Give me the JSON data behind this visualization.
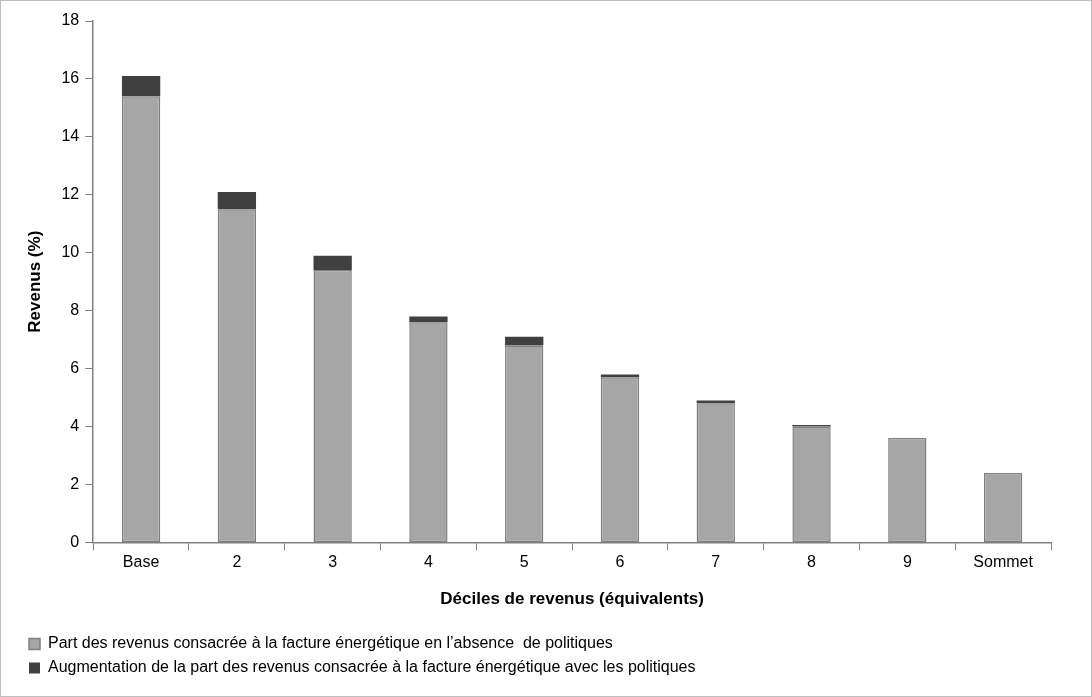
{
  "chart_data": {
    "type": "bar",
    "stacked": true,
    "xlabel": "Déciles de revenus (équivalents)",
    "ylabel": "Revenus (%)",
    "categories": [
      "Base",
      "2",
      "3",
      "4",
      "5",
      "6",
      "7",
      "8",
      "9",
      "Sommet"
    ],
    "series": [
      {
        "name": "Part des revenus consacrée à la facture énergétique en l’absence  de politiques",
        "color": "#a6a6a6",
        "values": [
          15.4,
          11.5,
          9.4,
          7.6,
          6.8,
          5.7,
          4.8,
          4.0,
          3.6,
          2.4
        ]
      },
      {
        "name": "Augmentation de la part des revenus consacrée à la facture énergétique avec les politiques",
        "color": "#404040",
        "values": [
          0.7,
          0.6,
          0.5,
          0.2,
          0.3,
          0.1,
          0.1,
          0.05,
          0,
          0
        ]
      }
    ],
    "ylim": [
      0,
      18
    ],
    "yticks": [
      0,
      2,
      4,
      6,
      8,
      10,
      12,
      14,
      16,
      18
    ],
    "grid": false,
    "legend": "bottom"
  }
}
